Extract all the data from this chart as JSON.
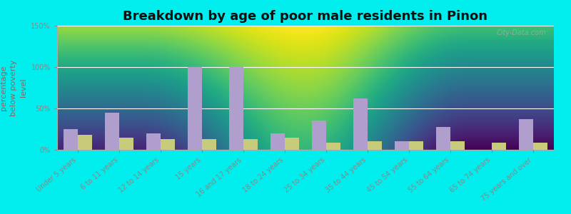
{
  "title": "Breakdown by age of poor male residents in Pinon",
  "ylabel": "percentage\nbelow poverty\nlevel",
  "categories": [
    "Under 5 years",
    "6 to 11 years",
    "12 to 14 years",
    "15 years",
    "16 and 17 years",
    "18 to 24 years",
    "25 to 34 years",
    "35 to 44 years",
    "45 to 54 years",
    "55 to 64 years",
    "65 to 74 years",
    "75 years and over"
  ],
  "pinon_values": [
    25,
    45,
    20,
    100,
    100,
    20,
    35,
    62,
    10,
    28,
    0,
    37
  ],
  "arizona_values": [
    18,
    15,
    13,
    13,
    13,
    15,
    9,
    10,
    10,
    10,
    9,
    9
  ],
  "pinon_color": "#b09fcc",
  "arizona_color": "#c8cc7a",
  "ylim": [
    0,
    150
  ],
  "yticks": [
    0,
    50,
    100,
    150
  ],
  "ytick_labels": [
    "0%",
    "50%",
    "100%",
    "150%"
  ],
  "plot_bg_top": "#f0f8e8",
  "plot_bg_bottom": "#d8f0d0",
  "outer_background": "#00eeee",
  "bar_width": 0.35,
  "title_fontsize": 13,
  "axis_label_fontsize": 8,
  "tick_label_fontsize": 7,
  "legend_fontsize": 9,
  "watermark": "City-Data.com",
  "label_color": "#886666",
  "ytick_color": "#888888"
}
